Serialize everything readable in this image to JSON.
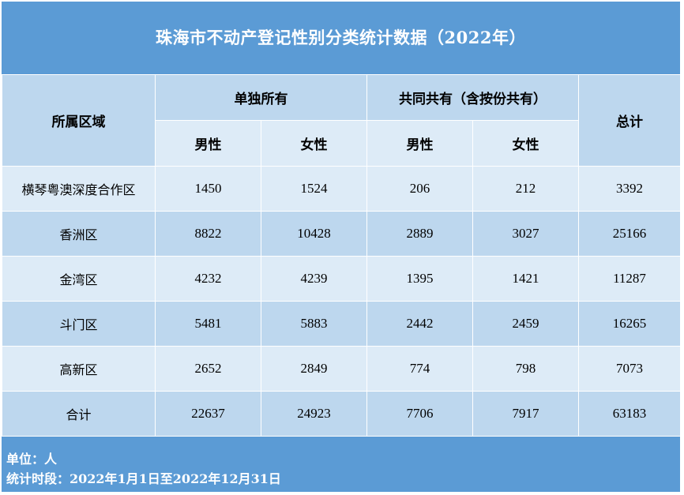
{
  "title": "珠海市不动产登记性别分类统计数据（2022年）",
  "header": {
    "region": "所属区域",
    "sole": "单独所有",
    "joint": "共同共有（含按份共有）",
    "total": "总计",
    "male": "男性",
    "female": "女性"
  },
  "rows": [
    {
      "region": "横琴粤澳深度合作区",
      "sole_male": "1450",
      "sole_female": "1524",
      "joint_male": "206",
      "joint_female": "212",
      "total": "3392"
    },
    {
      "region": "香洲区",
      "sole_male": "8822",
      "sole_female": "10428",
      "joint_male": "2889",
      "joint_female": "3027",
      "total": "25166"
    },
    {
      "region": "金湾区",
      "sole_male": "4232",
      "sole_female": "4239",
      "joint_male": "1395",
      "joint_female": "1421",
      "total": "11287"
    },
    {
      "region": "斗门区",
      "sole_male": "5481",
      "sole_female": "5883",
      "joint_male": "2442",
      "joint_female": "2459",
      "total": "16265"
    },
    {
      "region": "高新区",
      "sole_male": "2652",
      "sole_female": "2849",
      "joint_male": "774",
      "joint_female": "798",
      "total": "7073"
    },
    {
      "region": "合计",
      "sole_male": "22637",
      "sole_female": "24923",
      "joint_male": "7706",
      "joint_female": "7917",
      "total": "63183"
    }
  ],
  "footer": {
    "unit": "单位：人",
    "period": "统计时段：2022年1月1日至2022年12月31日"
  },
  "colors": {
    "frame": "#5b9bd5",
    "header_dark": "#bdd7ee",
    "header_light": "#ddebf7",
    "row_a": "#ddebf7",
    "row_b": "#bdd7ee"
  }
}
